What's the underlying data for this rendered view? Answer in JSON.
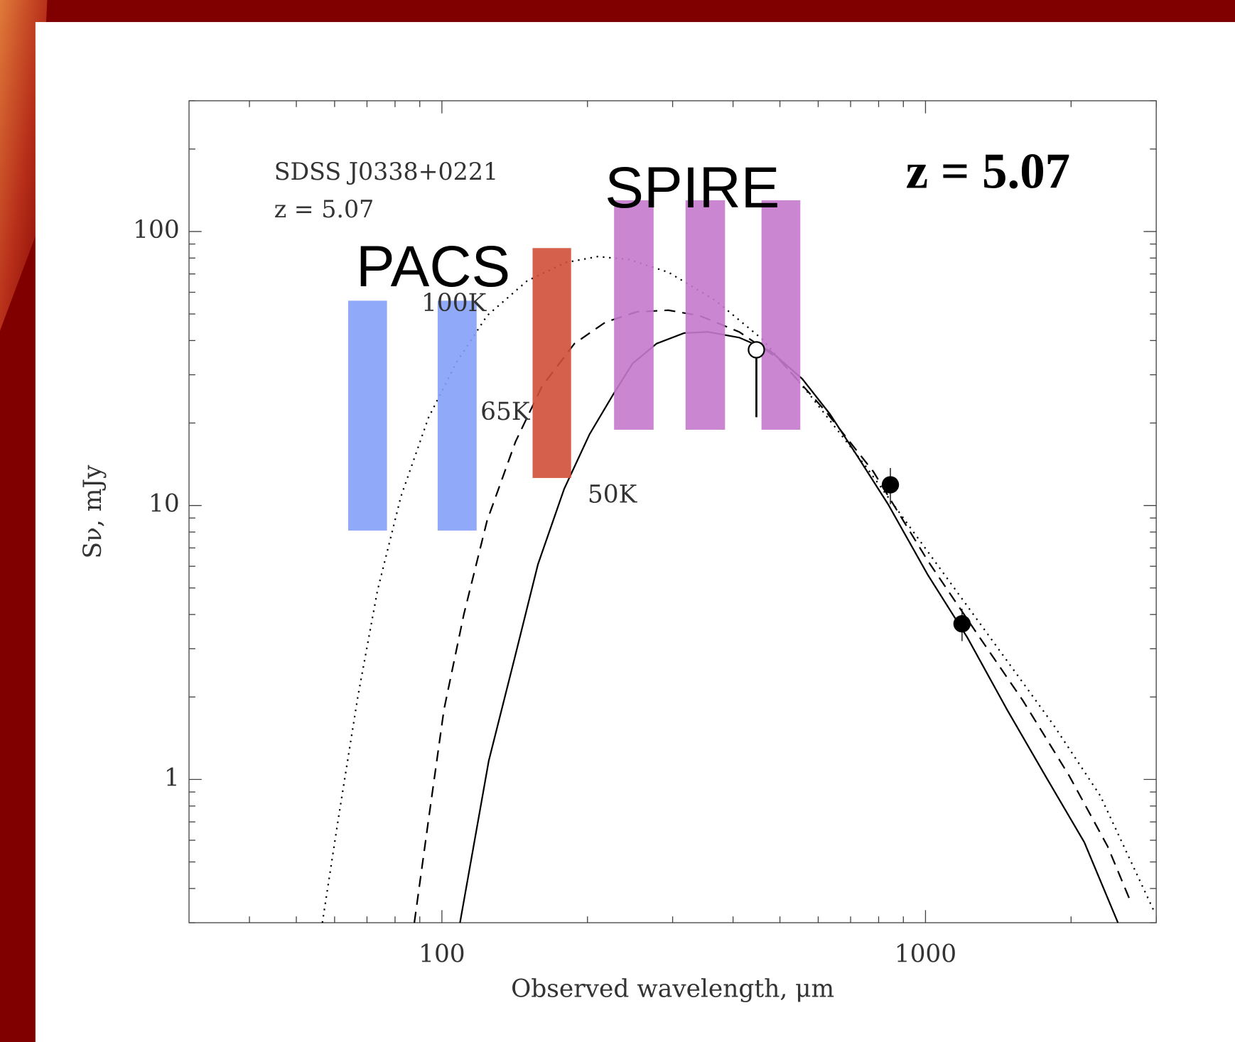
{
  "chart_data": {
    "type": "line",
    "xlabel": "Observed wavelength, μm",
    "ylabel": "Sν, mJy",
    "log_x": true,
    "log_y": true,
    "xlim": [
      30,
      3000
    ],
    "ylim": [
      0.3,
      300
    ],
    "xticks": [
      100,
      1000
    ],
    "yticks": [
      1,
      10,
      100
    ],
    "xminor": [
      40,
      50,
      60,
      70,
      80,
      90,
      200,
      300,
      400,
      500,
      600,
      700,
      800,
      900,
      2000,
      3000
    ],
    "yminor": [
      0.3,
      0.4,
      0.5,
      0.6,
      0.7,
      0.8,
      0.9,
      2,
      3,
      4,
      5,
      6,
      7,
      8,
      9,
      20,
      30,
      40,
      50,
      60,
      70,
      80,
      90,
      200,
      300
    ],
    "annotations": [
      "SDSS J0338+0221",
      "z = 5.07",
      "PACS",
      "SPIRE",
      "z = 5.07"
    ],
    "series": [
      {
        "name": "100K",
        "color": "#000000",
        "dash": "dotted",
        "x": [
          56.6,
          61,
          67,
          73.6,
          82.3,
          93.8,
          107,
          124,
          150,
          180,
          210,
          244,
          294,
          368,
          460,
          576,
          750,
          1010,
          1360,
          1840,
          2300,
          2970
        ],
        "values": [
          0.3,
          0.71,
          2.0,
          4.9,
          10.8,
          20.9,
          33.1,
          49.3,
          66,
          77,
          81,
          79,
          71,
          56,
          40.4,
          25.4,
          14,
          6.8,
          3.3,
          1.58,
          0.87,
          0.33
        ]
      },
      {
        "name": "65K",
        "color": "#000000",
        "dash": "dashed",
        "x": [
          87.7,
          93.8,
          101,
          111,
          124,
          142,
          161,
          188,
          218,
          253,
          294,
          341,
          412,
          497,
          620,
          780,
          1010,
          1265,
          1590,
          1983,
          2380,
          2670
        ],
        "values": [
          0.3,
          0.71,
          1.8,
          4.0,
          8.8,
          17.1,
          27.2,
          39,
          46.7,
          50.9,
          51.6,
          49.3,
          43,
          34.3,
          22.2,
          13.3,
          6.3,
          3.5,
          1.94,
          1.03,
          0.57,
          0.35
        ]
      },
      {
        "name": "50K",
        "color": "#000000",
        "dash": "solid",
        "x": [
          109,
          125,
          142,
          158,
          179,
          202,
          226,
          248,
          278,
          317,
          355,
          412,
          478,
          556,
          634,
          722,
          837,
          1010,
          1220,
          1474,
          1770,
          2130,
          2500
        ],
        "values": [
          0.3,
          1.17,
          2.86,
          6.1,
          11.5,
          18.2,
          25.4,
          33,
          39,
          42.6,
          43,
          41,
          36.6,
          29,
          21.6,
          15.2,
          10.1,
          5.6,
          3.3,
          1.8,
          1.03,
          0.59,
          0.3
        ]
      }
    ],
    "points": {
      "x": [
        846,
        1190
      ],
      "values": [
        11.9,
        3.7
      ],
      "errors": [
        1.8,
        0.5
      ]
    },
    "limit_point": {
      "x": 447,
      "value": 37,
      "bar_to": 21
    },
    "bands": [
      {
        "x": [
          64,
          77
        ],
        "y": [
          8.1,
          55.9
        ],
        "color": "#85a0f8"
      },
      {
        "x": [
          98,
          118
        ],
        "y": [
          8.1,
          55.9
        ],
        "color": "#85a0f8"
      },
      {
        "x": [
          154,
          185
        ],
        "y": [
          12.6,
          87
        ],
        "color": "#d0503a"
      },
      {
        "x": [
          227,
          274
        ],
        "y": [
          18.9,
          130
        ],
        "color": "#c479cc"
      },
      {
        "x": [
          319,
          385
        ],
        "y": [
          18.9,
          130
        ],
        "color": "#c479cc"
      },
      {
        "x": [
          458,
          551
        ],
        "y": [
          18.9,
          130
        ],
        "color": "#c479cc"
      }
    ]
  }
}
